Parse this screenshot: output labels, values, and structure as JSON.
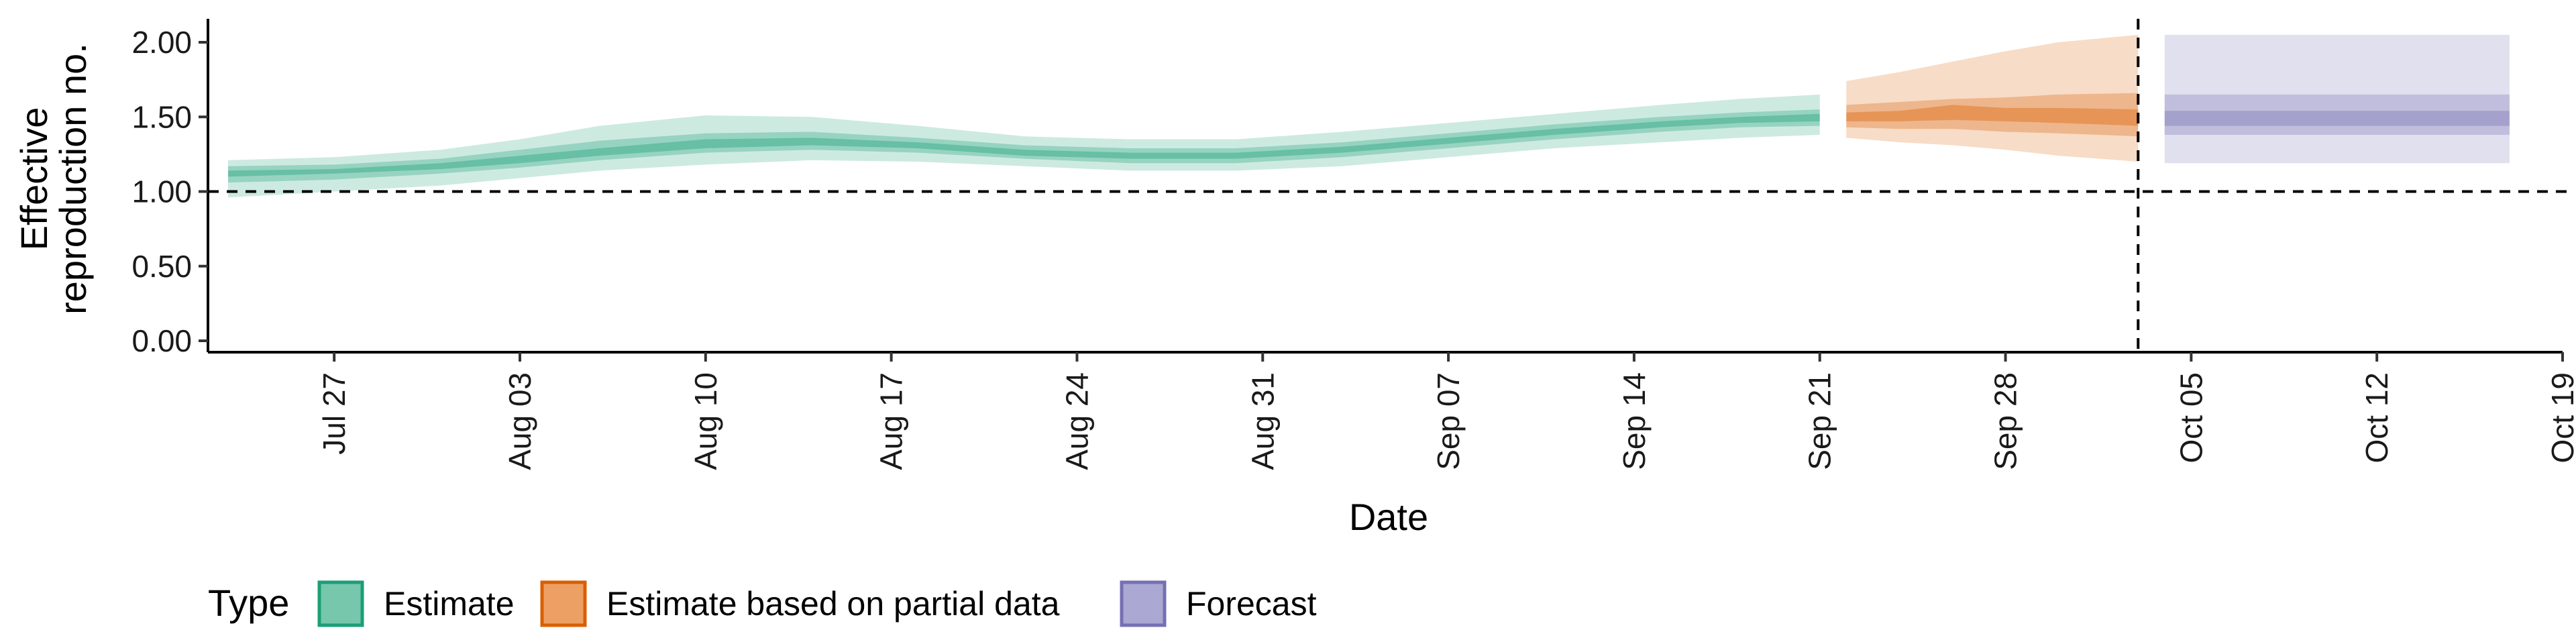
{
  "chart_data": {
    "type": "area",
    "xlabel": "Date",
    "ylabel": [
      "Effective",
      "reproduction no."
    ],
    "x_axis": {
      "type": "date",
      "range": [
        "2020-07-23",
        "2020-10-19"
      ],
      "ticks": [
        {
          "date": "2020-07-27",
          "label": "Jul 27"
        },
        {
          "date": "2020-08-03",
          "label": "Aug 03"
        },
        {
          "date": "2020-08-10",
          "label": "Aug 10"
        },
        {
          "date": "2020-08-17",
          "label": "Aug 17"
        },
        {
          "date": "2020-08-24",
          "label": "Aug 24"
        },
        {
          "date": "2020-08-31",
          "label": "Aug 31"
        },
        {
          "date": "2020-09-07",
          "label": "Sep 07"
        },
        {
          "date": "2020-09-14",
          "label": "Sep 14"
        },
        {
          "date": "2020-09-21",
          "label": "Sep 21"
        },
        {
          "date": "2020-09-28",
          "label": "Sep 28"
        },
        {
          "date": "2020-10-05",
          "label": "Oct 05"
        },
        {
          "date": "2020-10-12",
          "label": "Oct 12"
        },
        {
          "date": "2020-10-19",
          "label": "Oct 19"
        }
      ]
    },
    "y_axis": {
      "range": [
        0,
        2.1
      ],
      "ticks": [
        0,
        0.5,
        1,
        1.5,
        2
      ],
      "tick_labels": [
        "0.00",
        "0.50",
        "1.00",
        "1.50",
        "2.00"
      ]
    },
    "reference_lines": [
      {
        "axis": "y",
        "value": 1,
        "style": "dashed"
      },
      {
        "axis": "x",
        "value": "2020-10-03",
        "style": "dashed"
      }
    ],
    "grid": false,
    "legend": {
      "title": "Type",
      "position": "bottom-left",
      "entries": [
        {
          "label": "Estimate",
          "fill": "#76c7ac",
          "stroke": "#1b9e77"
        },
        {
          "label": "Estimate based on partial data",
          "fill": "#eda064",
          "stroke": "#d95f02"
        },
        {
          "label": "Forecast",
          "fill": "#aba8d3",
          "stroke": "#7570b3"
        }
      ]
    },
    "series": [
      {
        "type": "Estimate",
        "color": "#1b9e77",
        "points": [
          {
            "x": "2020-07-23",
            "lo90": 0.96,
            "lo50": 1.06,
            "lo20": 1.1,
            "hi20": 1.14,
            "hi50": 1.17,
            "hi90": 1.21
          },
          {
            "x": "2020-07-27",
            "lo90": 1.0,
            "lo50": 1.08,
            "lo20": 1.12,
            "hi20": 1.15,
            "hi50": 1.18,
            "hi90": 1.23
          },
          {
            "x": "2020-07-31",
            "lo90": 1.04,
            "lo50": 1.12,
            "lo20": 1.15,
            "hi20": 1.19,
            "hi50": 1.22,
            "hi90": 1.28
          },
          {
            "x": "2020-08-03",
            "lo90": 1.09,
            "lo50": 1.16,
            "lo20": 1.19,
            "hi20": 1.24,
            "hi50": 1.28,
            "hi90": 1.35
          },
          {
            "x": "2020-08-06",
            "lo90": 1.14,
            "lo50": 1.21,
            "lo20": 1.24,
            "hi20": 1.29,
            "hi50": 1.34,
            "hi90": 1.44
          },
          {
            "x": "2020-08-10",
            "lo90": 1.18,
            "lo50": 1.26,
            "lo20": 1.29,
            "hi20": 1.35,
            "hi50": 1.39,
            "hi90": 1.51
          },
          {
            "x": "2020-08-14",
            "lo90": 1.21,
            "lo50": 1.28,
            "lo20": 1.31,
            "hi20": 1.36,
            "hi50": 1.4,
            "hi90": 1.5
          },
          {
            "x": "2020-08-18",
            "lo90": 1.2,
            "lo50": 1.26,
            "lo20": 1.29,
            "hi20": 1.33,
            "hi50": 1.36,
            "hi90": 1.44
          },
          {
            "x": "2020-08-22",
            "lo90": 1.17,
            "lo50": 1.22,
            "lo20": 1.24,
            "hi20": 1.28,
            "hi50": 1.31,
            "hi90": 1.37
          },
          {
            "x": "2020-08-26",
            "lo90": 1.14,
            "lo50": 1.19,
            "lo20": 1.22,
            "hi20": 1.26,
            "hi50": 1.29,
            "hi90": 1.35
          },
          {
            "x": "2020-08-30",
            "lo90": 1.14,
            "lo50": 1.19,
            "lo20": 1.22,
            "hi20": 1.26,
            "hi50": 1.29,
            "hi90": 1.35
          },
          {
            "x": "2020-09-03",
            "lo90": 1.17,
            "lo50": 1.23,
            "lo20": 1.26,
            "hi20": 1.3,
            "hi50": 1.33,
            "hi90": 1.4
          },
          {
            "x": "2020-09-07",
            "lo90": 1.23,
            "lo50": 1.29,
            "lo20": 1.32,
            "hi20": 1.36,
            "hi50": 1.39,
            "hi90": 1.46
          },
          {
            "x": "2020-09-11",
            "lo90": 1.29,
            "lo50": 1.35,
            "lo20": 1.38,
            "hi20": 1.42,
            "hi50": 1.45,
            "hi90": 1.52
          },
          {
            "x": "2020-09-15",
            "lo90": 1.33,
            "lo50": 1.4,
            "lo20": 1.43,
            "hi20": 1.47,
            "hi50": 1.5,
            "hi90": 1.58
          },
          {
            "x": "2020-09-18",
            "lo90": 1.36,
            "lo50": 1.43,
            "lo20": 1.46,
            "hi20": 1.5,
            "hi50": 1.53,
            "hi90": 1.62
          },
          {
            "x": "2020-09-21",
            "lo90": 1.38,
            "lo50": 1.44,
            "lo20": 1.47,
            "hi20": 1.52,
            "hi50": 1.55,
            "hi90": 1.65
          }
        ]
      },
      {
        "type": "Estimate based on partial data",
        "color": "#d95f02",
        "points": [
          {
            "x": "2020-09-22",
            "lo90": 1.36,
            "lo50": 1.43,
            "lo20": 1.47,
            "hi20": 1.53,
            "hi50": 1.58,
            "hi90": 1.74
          },
          {
            "x": "2020-09-24",
            "lo90": 1.33,
            "lo50": 1.42,
            "lo20": 1.47,
            "hi20": 1.54,
            "hi50": 1.6,
            "hi90": 1.8
          },
          {
            "x": "2020-09-26",
            "lo90": 1.31,
            "lo50": 1.42,
            "lo20": 1.48,
            "hi20": 1.58,
            "hi50": 1.62,
            "hi90": 1.87
          },
          {
            "x": "2020-09-28",
            "lo90": 1.28,
            "lo50": 1.4,
            "lo20": 1.47,
            "hi20": 1.56,
            "hi50": 1.63,
            "hi90": 1.94
          },
          {
            "x": "2020-09-30",
            "lo90": 1.24,
            "lo50": 1.39,
            "lo20": 1.46,
            "hi20": 1.56,
            "hi50": 1.65,
            "hi90": 2.0
          },
          {
            "x": "2020-10-03",
            "lo90": 1.2,
            "lo50": 1.37,
            "lo20": 1.44,
            "hi20": 1.55,
            "hi50": 1.66,
            "hi90": 2.05
          }
        ]
      },
      {
        "type": "Forecast",
        "color": "#7570b3",
        "points": [
          {
            "x": "2020-10-04",
            "lo90": 1.19,
            "lo50": 1.38,
            "lo20": 1.44,
            "hi20": 1.54,
            "hi50": 1.65,
            "hi90": 2.05
          },
          {
            "x": "2020-10-17",
            "lo90": 1.19,
            "lo50": 1.38,
            "lo20": 1.44,
            "hi20": 1.54,
            "hi50": 1.65,
            "hi90": 2.05
          }
        ]
      }
    ]
  }
}
